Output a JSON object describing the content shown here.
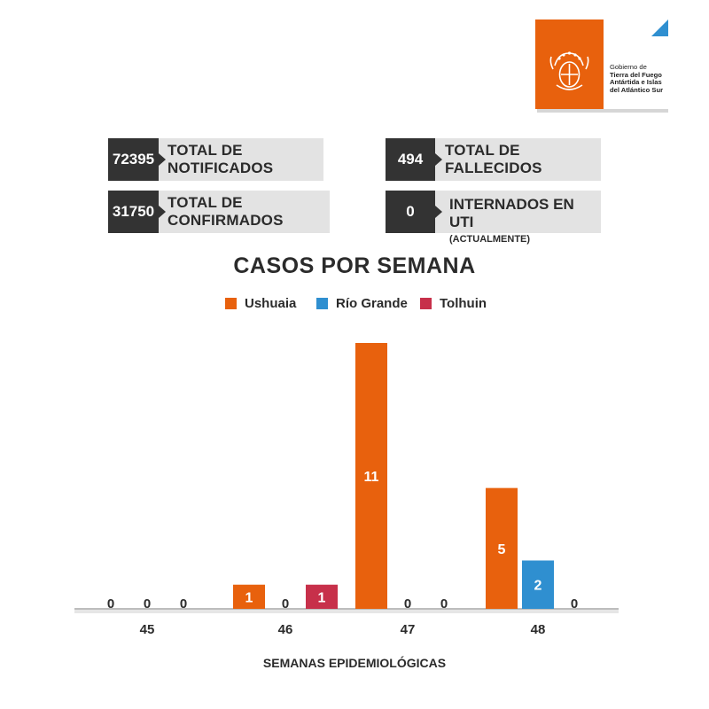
{
  "logo": {
    "line1": "Gobierno de",
    "line2": "Tierra del Fuego",
    "line3": "Antártida e Islas",
    "line4": "del Atlántico Sur"
  },
  "stats": {
    "notificados": {
      "value": "72395",
      "label": "TOTAL DE NOTIFICADOS"
    },
    "confirmados": {
      "value": "31750",
      "label": "TOTAL DE CONFIRMADOS"
    },
    "fallecidos": {
      "value": "494",
      "label": "TOTAL DE FALLECIDOS"
    },
    "uti": {
      "value": "0",
      "label": "INTERNADOS EN UTI",
      "sublabel": "(ACTUALMENTE)"
    }
  },
  "colors": {
    "ushuaia": "#e8610d",
    "rio_grande": "#2f8fd0",
    "tolhuin": "#c7304a",
    "dark": "#333333"
  },
  "chart_data": {
    "type": "bar",
    "title": "CASOS POR SEMANA",
    "xlabel": "SEMANAS EPIDEMIOLÓGICAS",
    "ylabel": "",
    "categories": [
      "45",
      "46",
      "47",
      "48"
    ],
    "series": [
      {
        "name": "Ushuaia",
        "values": [
          0,
          1,
          11,
          5
        ]
      },
      {
        "name": "Río Grande",
        "values": [
          0,
          0,
          0,
          2
        ]
      },
      {
        "name": "Tolhuin",
        "values": [
          0,
          1,
          0,
          0
        ]
      }
    ],
    "visible_bars": [
      [
        {
          "s": 0,
          "v": 0
        },
        {
          "s": 1,
          "v": 0
        },
        {
          "s": 2,
          "v": 0
        }
      ],
      [
        {
          "s": 0,
          "v": 1
        },
        {
          "s": 1,
          "v": 0
        },
        {
          "s": 2,
          "v": 1
        }
      ],
      [
        {
          "s": 0,
          "v": 11
        },
        {
          "s": 1,
          "v": 0
        },
        {
          "s": 2,
          "v": 0
        }
      ],
      [
        {
          "s": 0,
          "v": 5
        },
        {
          "s": 1,
          "v": 2
        },
        {
          "s": 2,
          "v": 0
        }
      ]
    ],
    "ylim": [
      0,
      11
    ],
    "grid": false,
    "legend": "top-center"
  }
}
